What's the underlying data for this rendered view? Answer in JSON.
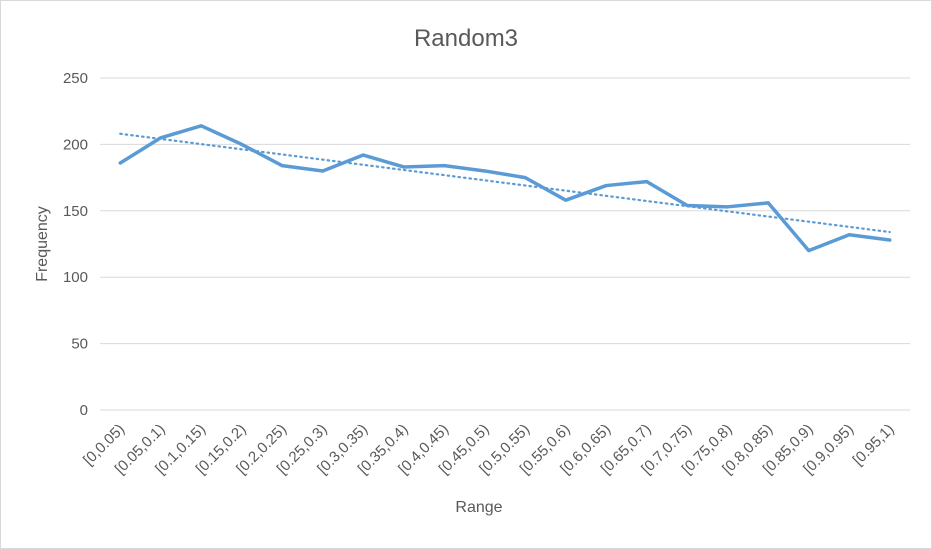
{
  "chart_data": {
    "type": "line",
    "title": "Random3",
    "xlabel": "Range",
    "ylabel": "Frequency",
    "ylim": [
      0,
      250
    ],
    "yticks": [
      0,
      50,
      100,
      150,
      200,
      250
    ],
    "grid": true,
    "legend": "none",
    "categories": [
      "[0,0.05)",
      "[0.05,0.1)",
      "[0.1,0.15)",
      "[0.15,0.2)",
      "[0.2,0.25)",
      "[0.25,0.3)",
      "[0.3,0.35)",
      "[0.35,0.4)",
      "[0.4,0.45)",
      "[0.45,0.5)",
      "[0.5,0.55)",
      "[0.55,0.6)",
      "[0.6,0.65)",
      "[0.65,0.7)",
      "[0.7,0.75)",
      "[0.75,0.8)",
      "[0.8,0.85)",
      "[0.85,0.9)",
      "[0.9,0.95)",
      "[0.95,1)"
    ],
    "series": [
      {
        "values": [
          186,
          205,
          214,
          200,
          184,
          180,
          192,
          183,
          184,
          180,
          175,
          158,
          169,
          172,
          154,
          153,
          156,
          120,
          132,
          128
        ]
      }
    ],
    "trendline": {
      "type": "linear",
      "style": "dotted",
      "start": 208,
      "end": 134
    },
    "colors": {
      "series": "#5b9bd5",
      "grid": "#d9d9d9",
      "text": "#595959"
    }
  }
}
